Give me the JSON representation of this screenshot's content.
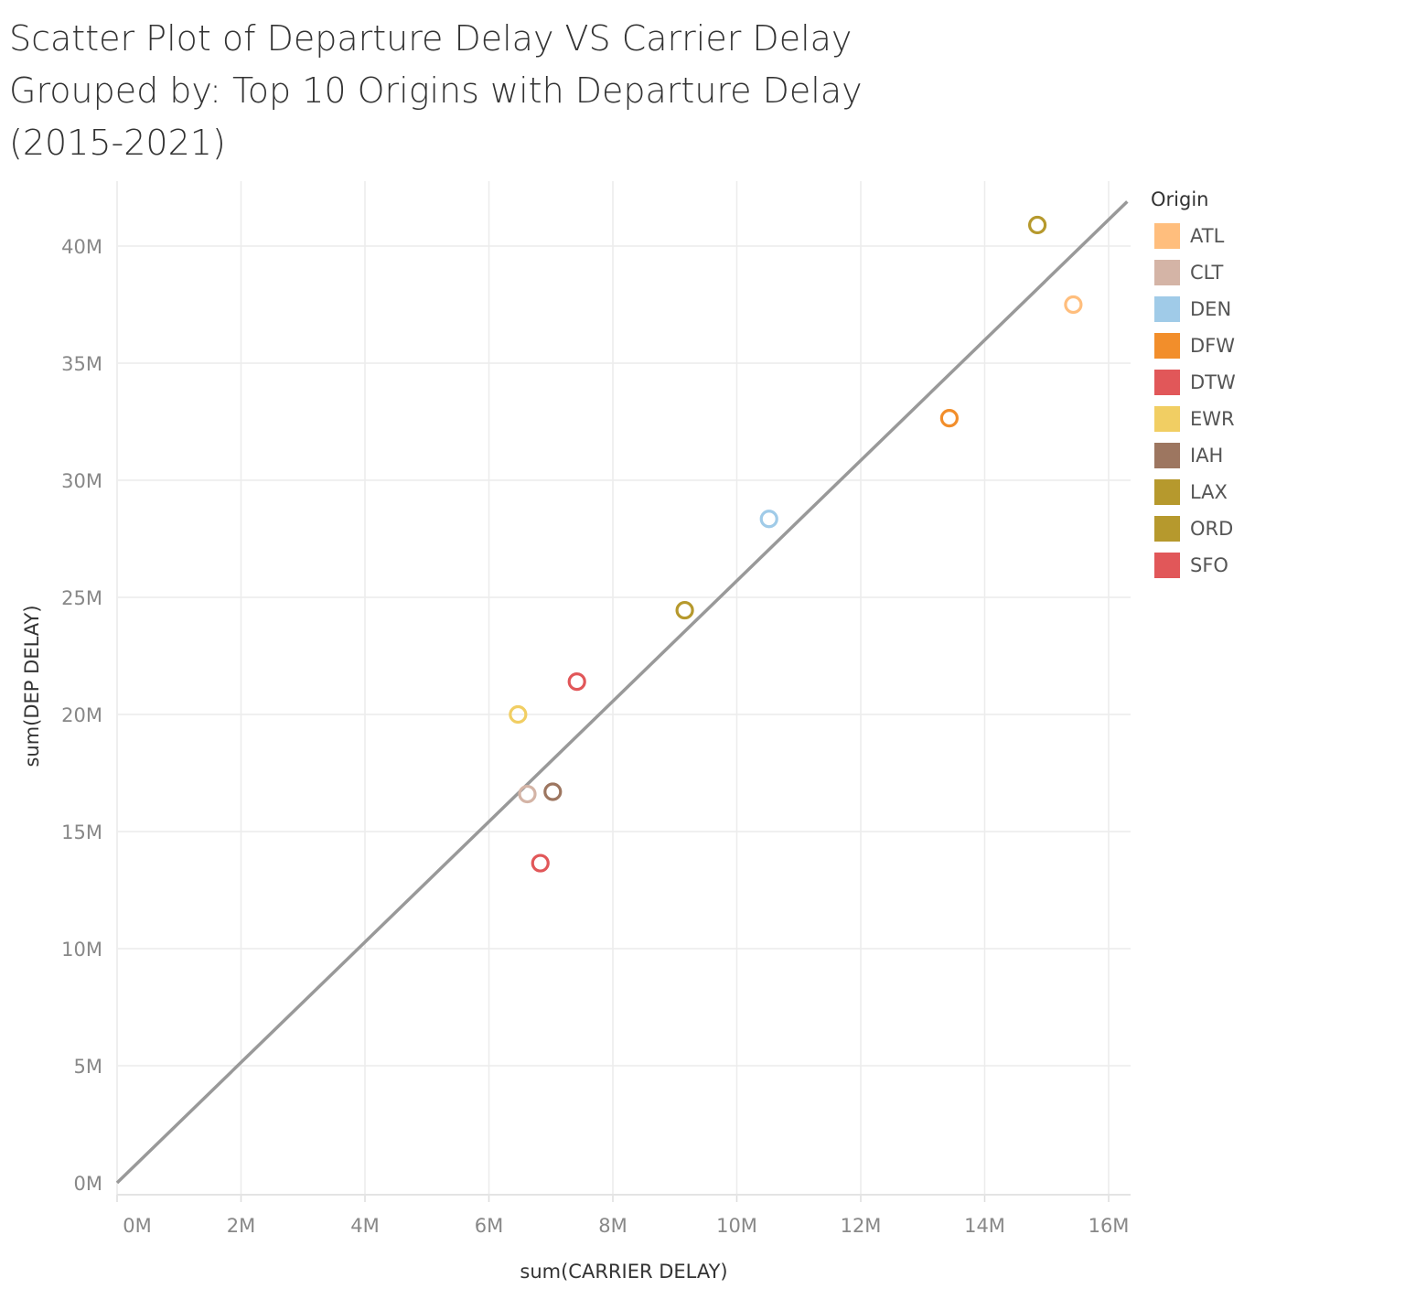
{
  "title_lines": [
    "Scatter Plot of Departure Delay VS Carrier Delay",
    "Grouped by: Top 10 Origins with Departure Delay",
    "(2015-2021)"
  ],
  "chart_data": {
    "type": "scatter",
    "title": "Scatter Plot of Departure Delay VS Carrier Delay Grouped by: Top 10 Origins with Departure Delay (2015-2021)",
    "xlabel": "sum(CARRIER DELAY)",
    "ylabel": "sum(DEP DELAY)",
    "xlim": [
      -0.3,
      16.3
    ],
    "ylim": [
      -0.5,
      43.3
    ],
    "x_unit": "M",
    "y_unit": "M",
    "x_ticks": [
      0,
      2,
      4,
      6,
      8,
      10,
      12,
      14,
      16
    ],
    "x_tick_labels": [
      "0M",
      "2M",
      "4M",
      "6M",
      "8M",
      "10M",
      "12M",
      "14M",
      "16M"
    ],
    "y_ticks": [
      0,
      5,
      10,
      15,
      20,
      25,
      30,
      35,
      40
    ],
    "y_tick_labels": [
      "0M",
      "5M",
      "10M",
      "15M",
      "20M",
      "25M",
      "30M",
      "35M",
      "40M"
    ],
    "grid": true,
    "legend": {
      "title": "Origin",
      "placement": "right",
      "entries": [
        {
          "name": "ATL",
          "color": "#FFBE7D"
        },
        {
          "name": "CLT",
          "color": "#D4B4A6"
        },
        {
          "name": "DEN",
          "color": "#A0CBE8"
        },
        {
          "name": "DFW",
          "color": "#F28E2B"
        },
        {
          "name": "DTW",
          "color": "#E15759"
        },
        {
          "name": "EWR",
          "color": "#F1CE63"
        },
        {
          "name": "IAH",
          "color": "#9D7660"
        },
        {
          "name": "LAX",
          "color": "#B6992D"
        },
        {
          "name": "ORD",
          "color": "#B6992D"
        },
        {
          "name": "SFO",
          "color": "#E15759"
        }
      ]
    },
    "points": [
      {
        "origin": "ATL",
        "x": 15.43,
        "y": 37.5,
        "color": "#FFBE7D"
      },
      {
        "origin": "CLT",
        "x": 6.62,
        "y": 16.6,
        "color": "#D4B4A6"
      },
      {
        "origin": "DEN",
        "x": 10.52,
        "y": 28.35,
        "color": "#A0CBE8"
      },
      {
        "origin": "DFW",
        "x": 13.43,
        "y": 32.65,
        "color": "#F28E2B"
      },
      {
        "origin": "DTW",
        "x": 7.42,
        "y": 21.4,
        "color": "#E15759"
      },
      {
        "origin": "EWR",
        "x": 6.47,
        "y": 20.0,
        "color": "#F1CE63"
      },
      {
        "origin": "IAH",
        "x": 7.03,
        "y": 16.7,
        "color": "#9D7660"
      },
      {
        "origin": "LAX",
        "x": 9.16,
        "y": 24.45,
        "color": "#B6992D"
      },
      {
        "origin": "ORD",
        "x": 14.85,
        "y": 40.9,
        "color": "#B6992D"
      },
      {
        "origin": "SFO",
        "x": 6.83,
        "y": 13.65,
        "color": "#E15759"
      }
    ],
    "trend_line": {
      "color": "#999999",
      "x0": 0,
      "y0": 0,
      "x1": 16.3,
      "y1": 41.9
    }
  }
}
